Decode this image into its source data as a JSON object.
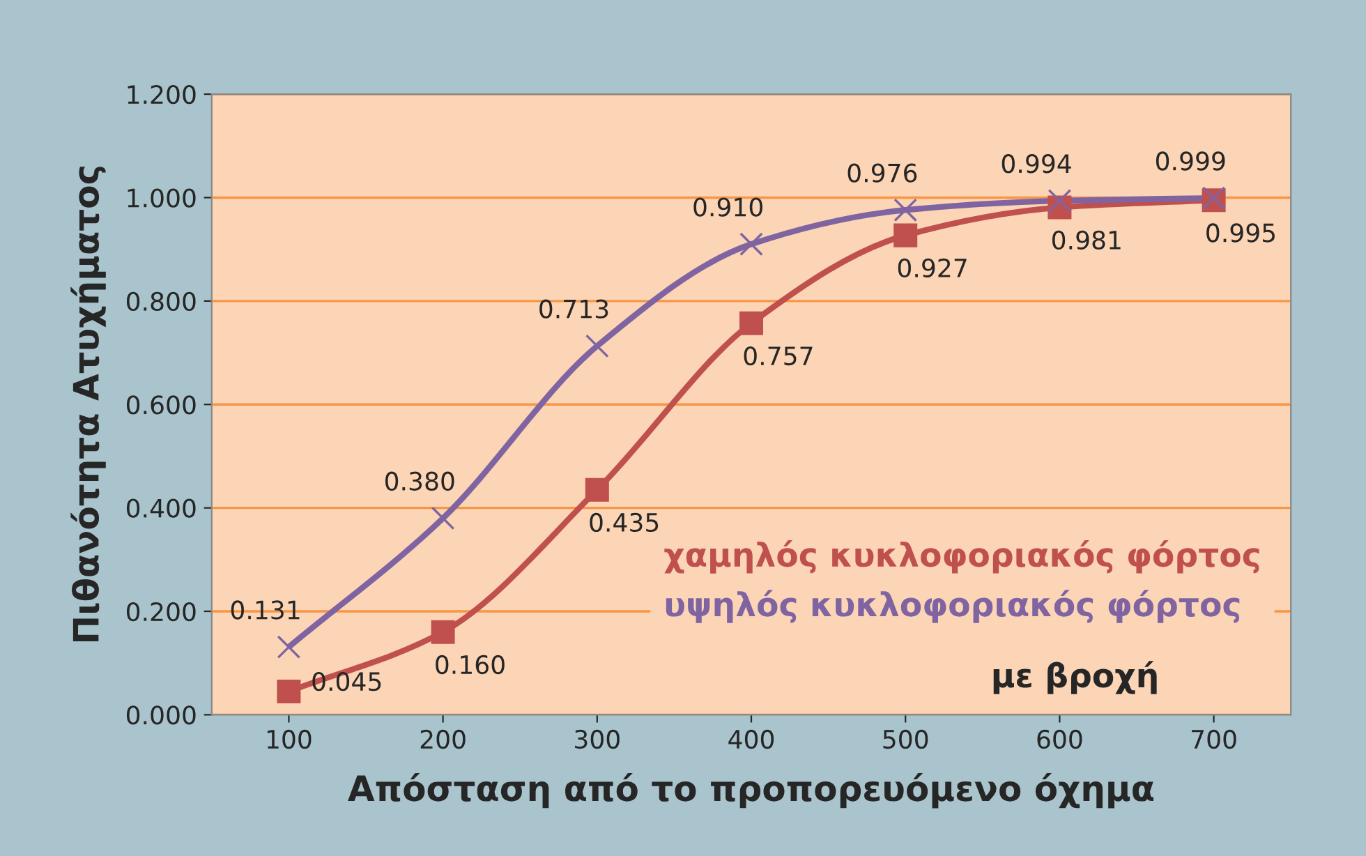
{
  "chart_data": {
    "type": "line",
    "xlabel": "Απόσταση από το προπορευόμενο όχημα",
    "ylabel": "Πιθανότητα Ατυχήματος",
    "categories": [
      "100",
      "200",
      "300",
      "400",
      "500",
      "600",
      "700"
    ],
    "series": [
      {
        "name": "χαμηλός κυκλοφοριακός φόρτος",
        "color": "#c0504d",
        "marker": "square",
        "values": [
          0.045,
          0.16,
          0.435,
          0.757,
          0.927,
          0.981,
          0.995
        ],
        "value_labels": [
          "0.045",
          "0.160",
          "0.435",
          "0.757",
          "0.927",
          "0.981",
          "0.995"
        ]
      },
      {
        "name": "υψηλός κυκλοφοριακός φόρτος",
        "color": "#8064a2",
        "marker": "cross",
        "values": [
          0.131,
          0.38,
          0.713,
          0.91,
          0.976,
          0.994,
          0.999
        ],
        "value_labels": [
          "0.131",
          "0.380",
          "0.713",
          "0.910",
          "0.976",
          "0.994",
          "0.999"
        ]
      }
    ],
    "ylim": [
      0,
      1.2
    ],
    "yticks": [
      {
        "value": 0,
        "label": "0.000"
      },
      {
        "value": 0.2,
        "label": "0.200"
      },
      {
        "value": 0.4,
        "label": "0.400"
      },
      {
        "value": 0.6,
        "label": "0.600"
      },
      {
        "value": 0.8,
        "label": "0.800"
      },
      {
        "value": 1.0,
        "label": "1.000"
      },
      {
        "value": 1.2,
        "label": "1.200"
      }
    ],
    "grid": "y",
    "legend": "bottom right",
    "line_style": "solid",
    "annotations": [
      "με βροχή"
    ]
  }
}
